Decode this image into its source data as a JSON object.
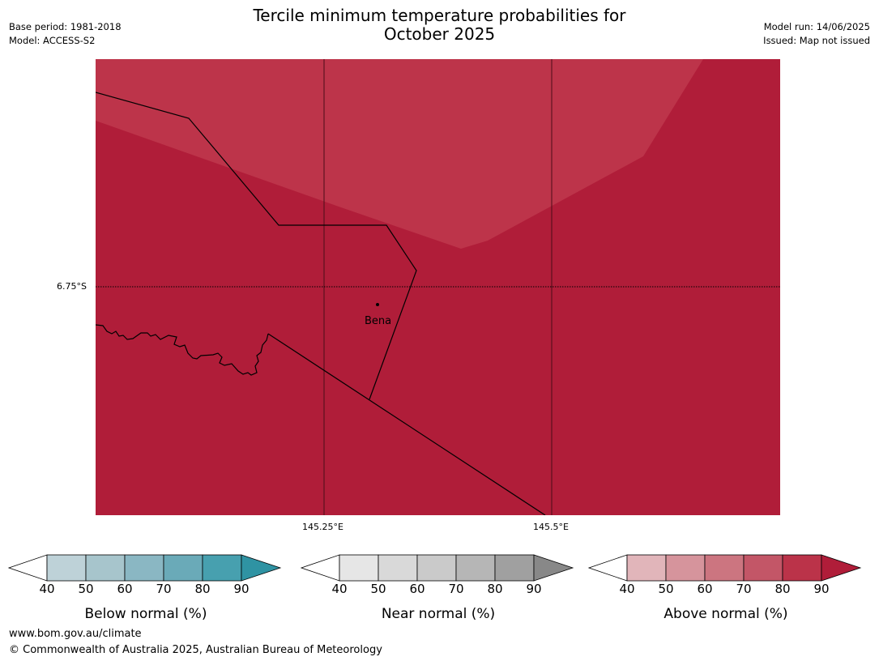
{
  "title_line1": "Tercile minimum temperature probabilities for",
  "title_line2": "October 2025",
  "base_period": "Base period: 1981-2018",
  "model": "Model: ACCESS-S2",
  "model_run": "Model run: 14/06/2025",
  "issued": "Issued: Map not issued",
  "map": {
    "place_label": "Bena",
    "lat_label": "6.75°S",
    "lon_labels": [
      "145.25°E",
      "145.5°E"
    ],
    "colors": {
      "above_80_90": "#bd344a",
      "above_90_plus": "#b01d39"
    }
  },
  "colorbars": [
    {
      "title": "Below normal (%)",
      "ticks": [
        "40",
        "50",
        "60",
        "70",
        "80",
        "90"
      ],
      "colors": [
        "#ffffff",
        "#bed2d8",
        "#a7c5cc",
        "#8ab7c3",
        "#6aaab8",
        "#47a0af",
        "#2f93a3"
      ]
    },
    {
      "title": "Near normal (%)",
      "ticks": [
        "40",
        "50",
        "60",
        "70",
        "80",
        "90"
      ],
      "colors": [
        "#ffffff",
        "#e6e6e6",
        "#d9d9d9",
        "#cacaca",
        "#b6b6b6",
        "#a0a0a0",
        "#888888"
      ]
    },
    {
      "title": "Above normal (%)",
      "ticks": [
        "40",
        "50",
        "60",
        "70",
        "80",
        "90"
      ],
      "colors": [
        "#ffffff",
        "#e1b5ba",
        "#d6949c",
        "#cc7580",
        "#c35667",
        "#bb3349",
        "#b01d39"
      ]
    }
  ],
  "footer_url": "www.bom.gov.au/climate",
  "footer_copyright": "© Commonwealth of Australia 2025, Australian Bureau of Meteorology"
}
